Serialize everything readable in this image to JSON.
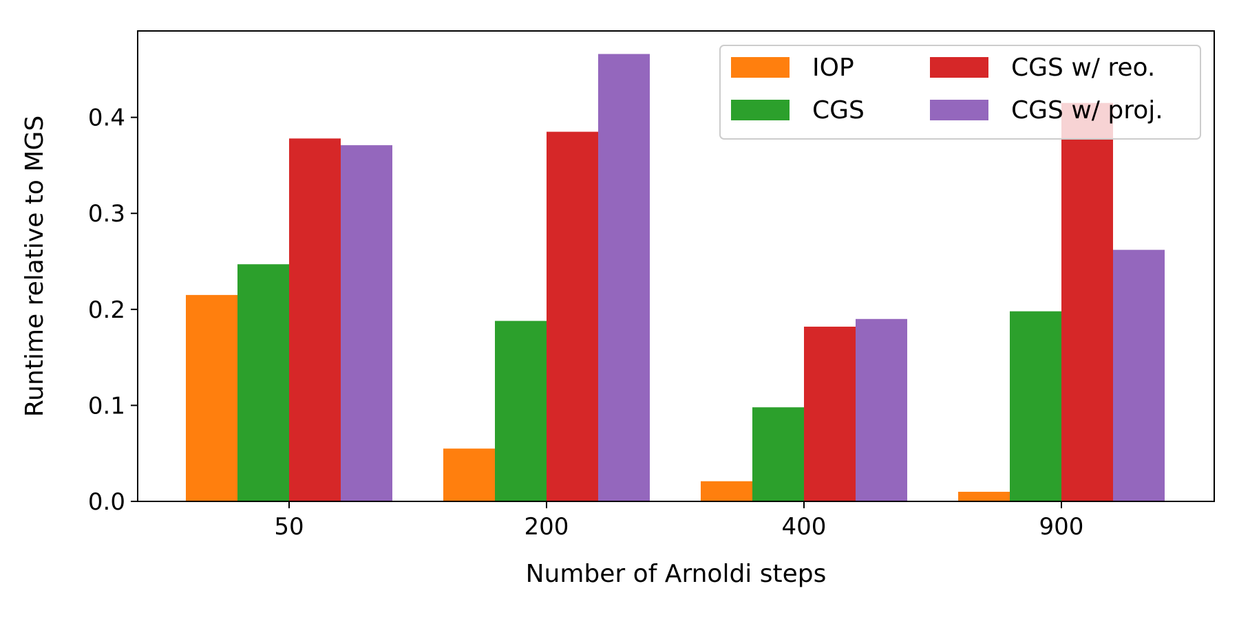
{
  "chart_data": {
    "type": "bar",
    "categories": [
      "50",
      "200",
      "400",
      "900"
    ],
    "series": [
      {
        "name": "IOP",
        "color": "#ff7f0e",
        "values": [
          0.215,
          0.055,
          0.021,
          0.01
        ]
      },
      {
        "name": "CGS",
        "color": "#2ca02c",
        "values": [
          0.247,
          0.188,
          0.098,
          0.198
        ]
      },
      {
        "name": "CGS w/ reo.",
        "color": "#d62728",
        "values": [
          0.378,
          0.385,
          0.182,
          0.415
        ]
      },
      {
        "name": "CGS w/ proj.",
        "color": "#9467bd",
        "values": [
          0.371,
          0.466,
          0.19,
          0.262
        ]
      }
    ],
    "xlabel": "Number of Arnoldi steps",
    "ylabel": "Runtime relative to MGS",
    "ylim": [
      0,
      0.49
    ],
    "yticks": [
      0.0,
      0.1,
      0.2,
      0.3,
      0.4
    ],
    "ytick_labels": [
      "0.0",
      "0.1",
      "0.2",
      "0.3",
      "0.4"
    ],
    "grid": false,
    "legend": {
      "position": "top-right",
      "columns": 2
    }
  }
}
